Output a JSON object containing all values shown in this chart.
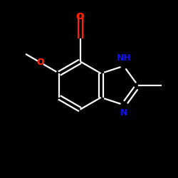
{
  "background_color": "#000000",
  "line_color": "#FFFFFF",
  "atom_colors": {
    "O": "#FF2200",
    "N": "#1111EE",
    "C": "#FFFFFF"
  },
  "figsize": [
    2.5,
    2.5
  ],
  "dpi": 100,
  "bond_lw": 1.6,
  "double_sep": 0.12
}
